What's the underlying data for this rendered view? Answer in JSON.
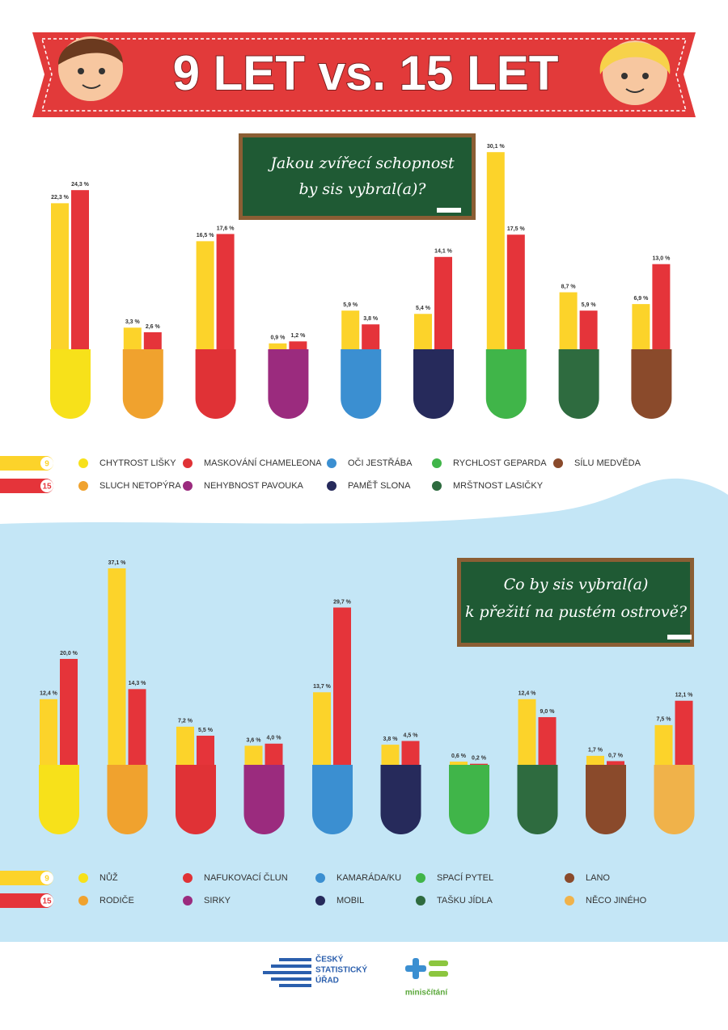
{
  "header": {
    "title": "9 LET vs. 15 LET"
  },
  "chart_data": [
    {
      "type": "bar",
      "title": [
        "Jakou zvířecí schopnost",
        "by sis vybral(a)?"
      ],
      "categories": [
        "CHYTROST LIŠKY",
        "SLUCH NETOPÝRA",
        "MASKOVÁNÍ CHAMELEONA",
        "NEHYBNOST PAVOUKA",
        "OČI JESTŘÁBA",
        "PAMĚŤ SLONA",
        "RYCHLOST GEPARDA",
        "MRŠTNOST LASIČKY",
        "SÍLU MEDVĚDA"
      ],
      "category_colors": [
        "#f7e11a",
        "#f0a22e",
        "#e03236",
        "#9b2b7e",
        "#3b8fd1",
        "#262a5b",
        "#40b549",
        "#2e6b3f",
        "#8a4a2b"
      ],
      "series": [
        {
          "name": "9",
          "color": "#fcd32a",
          "values": [
            22.3,
            3.3,
            16.5,
            0.9,
            5.9,
            5.4,
            30.1,
            8.7,
            6.9
          ],
          "value_labels": [
            "22,3 %",
            "3,3 %",
            "16,5 %",
            "0,9 %",
            "5,9 %",
            "5,4 %",
            "30,1 %",
            "8,7 %",
            "6,9 %"
          ]
        },
        {
          "name": "15",
          "color": "#e5343a",
          "values": [
            24.3,
            2.6,
            17.6,
            1.2,
            3.8,
            14.1,
            17.5,
            5.9,
            13.0
          ],
          "value_labels": [
            "24,3 %",
            "2,6 %",
            "17,6 %",
            "1,2 %",
            "3,8 %",
            "14,1 %",
            "17,5 %",
            "5,9 %",
            "13,0 %"
          ]
        }
      ]
    },
    {
      "type": "bar",
      "title": [
        "Co by sis vybral(a)",
        "k přežití na pustém ostrově?"
      ],
      "categories": [
        "NŮŽ",
        "RODIČE",
        "NAFUKOVACÍ ČLUN",
        "SIRKY",
        "KAMARÁDA/KU",
        "MOBIL",
        "SPACÍ PYTEL",
        "TAŠKU JÍDLA",
        "LANO",
        "NĚCO JINÉHO"
      ],
      "category_colors": [
        "#f7e11a",
        "#f0a22e",
        "#e03236",
        "#9b2b7e",
        "#3b8fd1",
        "#262a5b",
        "#40b549",
        "#2e6b3f",
        "#8a4a2b",
        "#f0b24a"
      ],
      "series": [
        {
          "name": "9",
          "color": "#fcd32a",
          "values": [
            12.4,
            37.1,
            7.2,
            3.6,
            13.7,
            3.8,
            0.6,
            12.4,
            1.7,
            7.5
          ],
          "value_labels": [
            "12,4 %",
            "37,1 %",
            "7,2 %",
            "3,6 %",
            "13,7 %",
            "3,8 %",
            "0,6 %",
            "12,4 %",
            "1,7 %",
            "7,5 %"
          ]
        },
        {
          "name": "15",
          "color": "#e5343a",
          "values": [
            20.0,
            14.3,
            5.5,
            4.0,
            29.7,
            4.5,
            0.2,
            9.0,
            0.7,
            12.1
          ],
          "value_labels": [
            "20,0 %",
            "14,3 %",
            "5,5 %",
            "4,0 %",
            "29,7 %",
            "4,5 %",
            "0,2 %",
            "9,0 %",
            "0,7 %",
            "12,1 %"
          ]
        }
      ]
    }
  ],
  "footer": {
    "csu_logo": [
      "ČESKÝ",
      "STATISTICKÝ",
      "ÚŘAD"
    ],
    "census_logo": "minisčítání"
  }
}
